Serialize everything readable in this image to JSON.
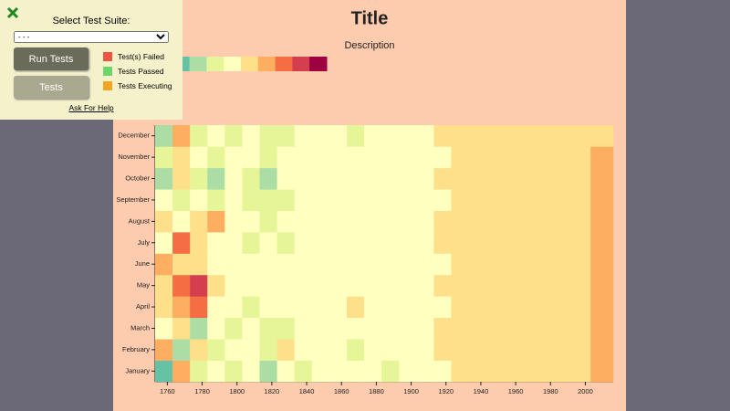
{
  "panel": {
    "heading": "Select Test Suite:",
    "select_option": "- - -",
    "buttons": [
      "Run Tests",
      "Tests"
    ],
    "legend": [
      {
        "label": "Test(s) Failed",
        "color": "#ef5343"
      },
      {
        "label": "Tests Passed",
        "color": "#6ed56a"
      },
      {
        "label": "Tests Executing",
        "color": "#f4a425"
      }
    ],
    "help": "Ask For Help"
  },
  "chart_data": {
    "type": "heatmap",
    "title": "Title",
    "subtitle": "Description",
    "colors": [
      "#5e4fa2",
      "#3288bd",
      "#66c2a5",
      "#abdda4",
      "#e6f598",
      "#ffffbf",
      "#fee08b",
      "#fdae61",
      "#f46d43",
      "#d53e4f",
      "#9e0142"
    ],
    "categories": [
      "January",
      "February",
      "March",
      "April",
      "May",
      "June",
      "July",
      "August",
      "September",
      "October",
      "November",
      "December"
    ],
    "x": [
      1753,
      1763,
      1773,
      1783,
      1793,
      1803,
      1813,
      1823,
      1833,
      1843,
      1853,
      1863,
      1873,
      1883,
      1893,
      1903,
      1913,
      1923,
      1933,
      1943,
      1953,
      1963,
      1973,
      1983,
      1993,
      2003
    ],
    "values": [
      [
        2,
        7,
        4,
        5,
        4,
        5,
        3,
        5,
        4,
        5,
        5,
        5,
        5,
        4,
        5,
        5,
        5,
        6,
        6,
        6,
        6,
        6,
        6,
        6,
        6,
        7
      ],
      [
        7,
        3,
        6,
        4,
        5,
        5,
        4,
        6,
        5,
        5,
        5,
        4,
        5,
        5,
        5,
        5,
        6,
        6,
        6,
        6,
        6,
        6,
        6,
        6,
        6,
        7
      ],
      [
        5,
        6,
        3,
        5,
        4,
        5,
        4,
        4,
        5,
        5,
        5,
        5,
        5,
        5,
        5,
        5,
        6,
        6,
        6,
        6,
        6,
        6,
        6,
        6,
        6,
        7
      ],
      [
        6,
        7,
        8,
        5,
        5,
        4,
        5,
        5,
        5,
        5,
        5,
        6,
        5,
        5,
        5,
        5,
        5,
        6,
        6,
        6,
        6,
        6,
        6,
        6,
        6,
        7
      ],
      [
        6,
        8,
        9,
        6,
        5,
        5,
        5,
        5,
        5,
        5,
        5,
        5,
        5,
        5,
        5,
        5,
        6,
        6,
        6,
        6,
        6,
        6,
        6,
        6,
        6,
        7
      ],
      [
        7,
        6,
        6,
        5,
        5,
        5,
        5,
        5,
        5,
        5,
        5,
        5,
        5,
        5,
        5,
        5,
        5,
        6,
        6,
        6,
        6,
        6,
        6,
        6,
        6,
        7
      ],
      [
        5,
        8,
        6,
        5,
        5,
        4,
        5,
        4,
        5,
        5,
        5,
        5,
        5,
        5,
        5,
        5,
        6,
        6,
        6,
        6,
        6,
        6,
        6,
        6,
        6,
        7
      ],
      [
        6,
        5,
        6,
        7,
        5,
        5,
        4,
        5,
        5,
        5,
        5,
        5,
        5,
        5,
        5,
        5,
        6,
        6,
        6,
        6,
        6,
        6,
        6,
        6,
        6,
        7
      ],
      [
        5,
        4,
        5,
        4,
        5,
        4,
        4,
        4,
        5,
        5,
        5,
        5,
        5,
        5,
        5,
        5,
        5,
        6,
        6,
        6,
        6,
        6,
        6,
        6,
        6,
        7
      ],
      [
        3,
        6,
        4,
        3,
        5,
        4,
        3,
        5,
        5,
        5,
        5,
        5,
        5,
        5,
        5,
        5,
        6,
        6,
        6,
        6,
        6,
        6,
        6,
        6,
        6,
        7
      ],
      [
        4,
        6,
        5,
        4,
        5,
        5,
        4,
        5,
        5,
        5,
        5,
        5,
        5,
        5,
        5,
        5,
        5,
        6,
        6,
        6,
        6,
        6,
        6,
        6,
        6,
        7
      ],
      [
        3,
        7,
        4,
        5,
        4,
        5,
        4,
        4,
        5,
        5,
        5,
        4,
        5,
        5,
        5,
        5,
        6,
        6,
        6,
        6,
        6,
        6,
        6,
        6,
        6,
        6
      ]
    ],
    "xlim": [
      1753,
      2016
    ],
    "xticks": [
      1760,
      1780,
      1800,
      1820,
      1840,
      1860,
      1880,
      1900,
      1920,
      1940,
      1960,
      1980,
      2000
    ]
  }
}
